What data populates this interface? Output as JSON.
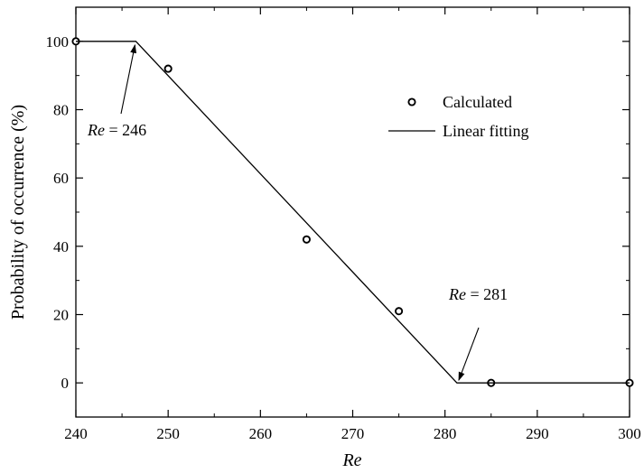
{
  "chart_data": {
    "type": "scatter",
    "xlabel": "Re",
    "ylabel": "Probability of occurrence (%)",
    "xlim": [
      240,
      300
    ],
    "ylim": [
      -10,
      110
    ],
    "x_ticks": [
      240,
      250,
      260,
      270,
      280,
      290,
      300
    ],
    "y_ticks": [
      0,
      20,
      40,
      60,
      80,
      100
    ],
    "grid": false,
    "legend_position": "upper-right",
    "series": [
      {
        "name": "Calculated",
        "kind": "scatter",
        "marker": "open-circle",
        "color": "#000000",
        "points": [
          {
            "x": 240,
            "y": 100
          },
          {
            "x": 250,
            "y": 92
          },
          {
            "x": 265,
            "y": 42
          },
          {
            "x": 275,
            "y": 21
          },
          {
            "x": 285,
            "y": 0
          },
          {
            "x": 300,
            "y": 0
          }
        ]
      },
      {
        "name": "Linear fitting",
        "kind": "line",
        "color": "#000000",
        "points": [
          {
            "x": 240,
            "y": 100
          },
          {
            "x": 246.5,
            "y": 100
          },
          {
            "x": 281.3,
            "y": 0
          },
          {
            "x": 300,
            "y": 0
          }
        ]
      }
    ],
    "annotations": [
      {
        "italic": "Re",
        "text": " = 246",
        "arrow_to": {
          "x": 246.5,
          "y": 100
        }
      },
      {
        "italic": "Re",
        "text": " = 281",
        "arrow_to": {
          "x": 281.3,
          "y": 0
        }
      }
    ]
  }
}
